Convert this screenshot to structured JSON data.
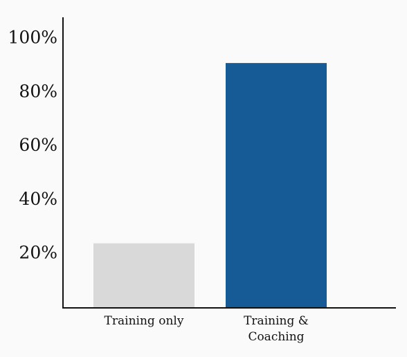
{
  "chart_data": {
    "type": "bar",
    "categories": [
      "Training only",
      "Training & Coaching"
    ],
    "values": [
      24,
      91
    ],
    "colors": [
      "#d9d9d9",
      "#165a96"
    ],
    "ylim": [
      0,
      108
    ],
    "yticks": [
      {
        "value": 20,
        "label": "20%"
      },
      {
        "value": 40,
        "label": "40%"
      },
      {
        "value": 60,
        "label": "60%"
      },
      {
        "value": 80,
        "label": "80%"
      },
      {
        "value": 100,
        "label": "100%"
      }
    ],
    "grid": false
  }
}
